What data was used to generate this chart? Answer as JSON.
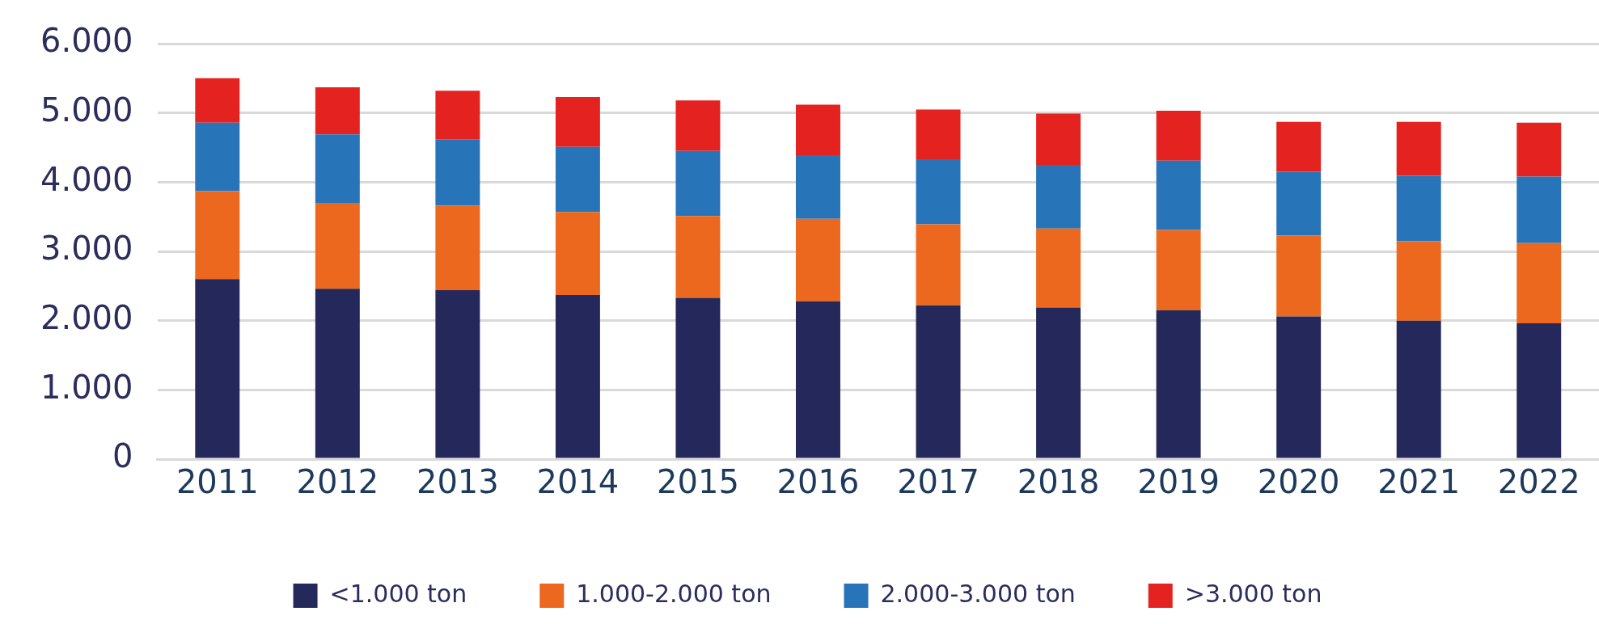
{
  "chart_data": {
    "type": "bar",
    "stacked": true,
    "categories": [
      "2011",
      "2012",
      "2013",
      "2014",
      "2015",
      "2016",
      "2017",
      "2018",
      "2019",
      "2020",
      "2021",
      "2022"
    ],
    "series": [
      {
        "name": "<1.000 ton",
        "color": "#24285a",
        "values": [
          2600,
          2460,
          2440,
          2370,
          2330,
          2280,
          2220,
          2190,
          2150,
          2060,
          2000,
          1960
        ]
      },
      {
        "name": "1.000-2.000 ton",
        "color": "#eb681e",
        "values": [
          1270,
          1240,
          1220,
          1200,
          1180,
          1190,
          1170,
          1140,
          1160,
          1170,
          1150,
          1160
        ]
      },
      {
        "name": "2.000-3.000 ton",
        "color": "#2874b9",
        "values": [
          990,
          990,
          960,
          940,
          940,
          920,
          940,
          920,
          1000,
          920,
          940,
          960
        ]
      },
      {
        "name": ">3.000 ton",
        "color": "#e42320",
        "values": [
          640,
          680,
          700,
          720,
          730,
          730,
          720,
          740,
          720,
          720,
          780,
          780
        ]
      }
    ],
    "ylim": [
      0,
      6000
    ],
    "yticks": [
      {
        "value": 0,
        "label": "0"
      },
      {
        "value": 1000,
        "label": "1.000"
      },
      {
        "value": 2000,
        "label": "2.000"
      },
      {
        "value": 3000,
        "label": "3.000"
      },
      {
        "value": 4000,
        "label": "4.000"
      },
      {
        "value": 5000,
        "label": "5.000"
      },
      {
        "value": 6000,
        "label": "6.000"
      }
    ],
    "grid": "y",
    "legend": "bottom"
  }
}
